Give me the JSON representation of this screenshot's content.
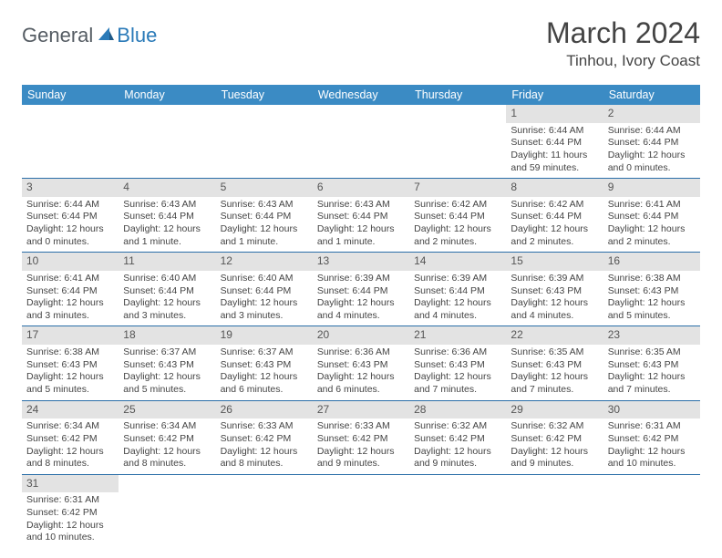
{
  "logo": {
    "general": "General",
    "blue": "Blue"
  },
  "title": "March 2024",
  "location": "Tinhou, Ivory Coast",
  "header_bg": "#3b8bc4",
  "daynum_bg": "#e3e3e3",
  "border_color": "#2a6ea8",
  "days_of_week": [
    "Sunday",
    "Monday",
    "Tuesday",
    "Wednesday",
    "Thursday",
    "Friday",
    "Saturday"
  ],
  "weeks": [
    [
      {
        "n": "",
        "lines": [
          "",
          "",
          "",
          ""
        ]
      },
      {
        "n": "",
        "lines": [
          "",
          "",
          "",
          ""
        ]
      },
      {
        "n": "",
        "lines": [
          "",
          "",
          "",
          ""
        ]
      },
      {
        "n": "",
        "lines": [
          "",
          "",
          "",
          ""
        ]
      },
      {
        "n": "",
        "lines": [
          "",
          "",
          "",
          ""
        ]
      },
      {
        "n": "1",
        "lines": [
          "Sunrise: 6:44 AM",
          "Sunset: 6:44 PM",
          "Daylight: 11 hours",
          "and 59 minutes."
        ]
      },
      {
        "n": "2",
        "lines": [
          "Sunrise: 6:44 AM",
          "Sunset: 6:44 PM",
          "Daylight: 12 hours",
          "and 0 minutes."
        ]
      }
    ],
    [
      {
        "n": "3",
        "lines": [
          "Sunrise: 6:44 AM",
          "Sunset: 6:44 PM",
          "Daylight: 12 hours",
          "and 0 minutes."
        ]
      },
      {
        "n": "4",
        "lines": [
          "Sunrise: 6:43 AM",
          "Sunset: 6:44 PM",
          "Daylight: 12 hours",
          "and 1 minute."
        ]
      },
      {
        "n": "5",
        "lines": [
          "Sunrise: 6:43 AM",
          "Sunset: 6:44 PM",
          "Daylight: 12 hours",
          "and 1 minute."
        ]
      },
      {
        "n": "6",
        "lines": [
          "Sunrise: 6:43 AM",
          "Sunset: 6:44 PM",
          "Daylight: 12 hours",
          "and 1 minute."
        ]
      },
      {
        "n": "7",
        "lines": [
          "Sunrise: 6:42 AM",
          "Sunset: 6:44 PM",
          "Daylight: 12 hours",
          "and 2 minutes."
        ]
      },
      {
        "n": "8",
        "lines": [
          "Sunrise: 6:42 AM",
          "Sunset: 6:44 PM",
          "Daylight: 12 hours",
          "and 2 minutes."
        ]
      },
      {
        "n": "9",
        "lines": [
          "Sunrise: 6:41 AM",
          "Sunset: 6:44 PM",
          "Daylight: 12 hours",
          "and 2 minutes."
        ]
      }
    ],
    [
      {
        "n": "10",
        "lines": [
          "Sunrise: 6:41 AM",
          "Sunset: 6:44 PM",
          "Daylight: 12 hours",
          "and 3 minutes."
        ]
      },
      {
        "n": "11",
        "lines": [
          "Sunrise: 6:40 AM",
          "Sunset: 6:44 PM",
          "Daylight: 12 hours",
          "and 3 minutes."
        ]
      },
      {
        "n": "12",
        "lines": [
          "Sunrise: 6:40 AM",
          "Sunset: 6:44 PM",
          "Daylight: 12 hours",
          "and 3 minutes."
        ]
      },
      {
        "n": "13",
        "lines": [
          "Sunrise: 6:39 AM",
          "Sunset: 6:44 PM",
          "Daylight: 12 hours",
          "and 4 minutes."
        ]
      },
      {
        "n": "14",
        "lines": [
          "Sunrise: 6:39 AM",
          "Sunset: 6:44 PM",
          "Daylight: 12 hours",
          "and 4 minutes."
        ]
      },
      {
        "n": "15",
        "lines": [
          "Sunrise: 6:39 AM",
          "Sunset: 6:43 PM",
          "Daylight: 12 hours",
          "and 4 minutes."
        ]
      },
      {
        "n": "16",
        "lines": [
          "Sunrise: 6:38 AM",
          "Sunset: 6:43 PM",
          "Daylight: 12 hours",
          "and 5 minutes."
        ]
      }
    ],
    [
      {
        "n": "17",
        "lines": [
          "Sunrise: 6:38 AM",
          "Sunset: 6:43 PM",
          "Daylight: 12 hours",
          "and 5 minutes."
        ]
      },
      {
        "n": "18",
        "lines": [
          "Sunrise: 6:37 AM",
          "Sunset: 6:43 PM",
          "Daylight: 12 hours",
          "and 5 minutes."
        ]
      },
      {
        "n": "19",
        "lines": [
          "Sunrise: 6:37 AM",
          "Sunset: 6:43 PM",
          "Daylight: 12 hours",
          "and 6 minutes."
        ]
      },
      {
        "n": "20",
        "lines": [
          "Sunrise: 6:36 AM",
          "Sunset: 6:43 PM",
          "Daylight: 12 hours",
          "and 6 minutes."
        ]
      },
      {
        "n": "21",
        "lines": [
          "Sunrise: 6:36 AM",
          "Sunset: 6:43 PM",
          "Daylight: 12 hours",
          "and 7 minutes."
        ]
      },
      {
        "n": "22",
        "lines": [
          "Sunrise: 6:35 AM",
          "Sunset: 6:43 PM",
          "Daylight: 12 hours",
          "and 7 minutes."
        ]
      },
      {
        "n": "23",
        "lines": [
          "Sunrise: 6:35 AM",
          "Sunset: 6:43 PM",
          "Daylight: 12 hours",
          "and 7 minutes."
        ]
      }
    ],
    [
      {
        "n": "24",
        "lines": [
          "Sunrise: 6:34 AM",
          "Sunset: 6:42 PM",
          "Daylight: 12 hours",
          "and 8 minutes."
        ]
      },
      {
        "n": "25",
        "lines": [
          "Sunrise: 6:34 AM",
          "Sunset: 6:42 PM",
          "Daylight: 12 hours",
          "and 8 minutes."
        ]
      },
      {
        "n": "26",
        "lines": [
          "Sunrise: 6:33 AM",
          "Sunset: 6:42 PM",
          "Daylight: 12 hours",
          "and 8 minutes."
        ]
      },
      {
        "n": "27",
        "lines": [
          "Sunrise: 6:33 AM",
          "Sunset: 6:42 PM",
          "Daylight: 12 hours",
          "and 9 minutes."
        ]
      },
      {
        "n": "28",
        "lines": [
          "Sunrise: 6:32 AM",
          "Sunset: 6:42 PM",
          "Daylight: 12 hours",
          "and 9 minutes."
        ]
      },
      {
        "n": "29",
        "lines": [
          "Sunrise: 6:32 AM",
          "Sunset: 6:42 PM",
          "Daylight: 12 hours",
          "and 9 minutes."
        ]
      },
      {
        "n": "30",
        "lines": [
          "Sunrise: 6:31 AM",
          "Sunset: 6:42 PM",
          "Daylight: 12 hours",
          "and 10 minutes."
        ]
      }
    ],
    [
      {
        "n": "31",
        "lines": [
          "Sunrise: 6:31 AM",
          "Sunset: 6:42 PM",
          "Daylight: 12 hours",
          "and 10 minutes."
        ]
      },
      {
        "n": "",
        "lines": [
          "",
          "",
          "",
          ""
        ]
      },
      {
        "n": "",
        "lines": [
          "",
          "",
          "",
          ""
        ]
      },
      {
        "n": "",
        "lines": [
          "",
          "",
          "",
          ""
        ]
      },
      {
        "n": "",
        "lines": [
          "",
          "",
          "",
          ""
        ]
      },
      {
        "n": "",
        "lines": [
          "",
          "",
          "",
          ""
        ]
      },
      {
        "n": "",
        "lines": [
          "",
          "",
          "",
          ""
        ]
      }
    ]
  ]
}
